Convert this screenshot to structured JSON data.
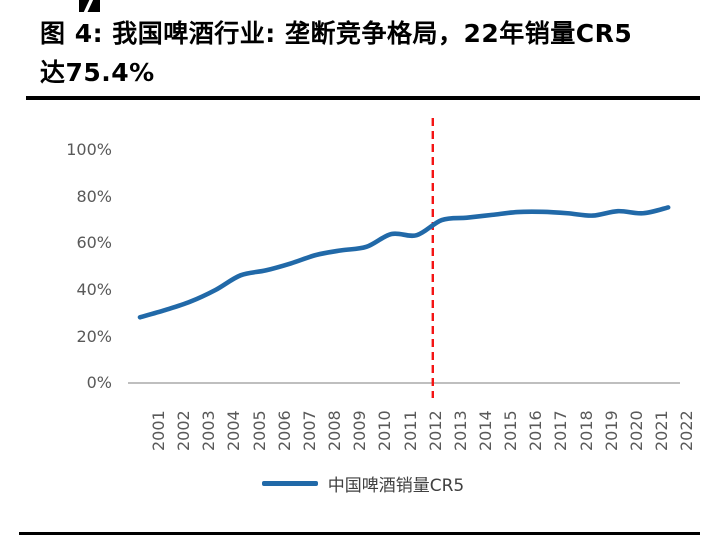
{
  "page": {
    "title_line1": "图 4: 我国啤酒行业: 垄断竞争格局，22年销量CR5",
    "title_line2": "达75.4%"
  },
  "colors": {
    "series_line": "#2169A8",
    "vline_red": "#F41414",
    "axis_gray": "#BFBFBF",
    "tick_text": "#595959",
    "title_text": "#000000"
  },
  "chart_data": {
    "type": "line",
    "title": "图 4: 我国啤酒行业: 垄断竞争格局，22年销量CR5达75.4%",
    "x": [
      "2001",
      "2002",
      "2003",
      "2004",
      "2005",
      "2006",
      "2007",
      "2008",
      "2009",
      "2010",
      "2011",
      "2012",
      "2013",
      "2014",
      "2015",
      "2016",
      "2017",
      "2018",
      "2019",
      "2020",
      "2021",
      "2022"
    ],
    "series": [
      {
        "name": "中国啤酒销量CR5",
        "values": [
          28.3,
          31.4,
          35.0,
          40.0,
          46.3,
          48.4,
          51.4,
          55.0,
          57.0,
          58.5,
          64.0,
          63.5,
          70.0,
          71.0,
          72.2,
          73.4,
          73.5,
          72.9,
          71.9,
          73.8,
          72.9,
          75.4
        ],
        "color": "#2169A8"
      }
    ],
    "xlabel": "",
    "ylabel": "",
    "ylim": [
      0,
      100
    ],
    "yticks": [
      {
        "pct": 0,
        "label": "0%"
      },
      {
        "pct": 20,
        "label": "20%"
      },
      {
        "pct": 40,
        "label": "40%"
      },
      {
        "pct": 60,
        "label": "60%"
      },
      {
        "pct": 80,
        "label": "80%"
      },
      {
        "pct": 100,
        "label": "100%"
      }
    ],
    "grid": false,
    "legend_position": "bottom",
    "annotations": [
      {
        "type": "vline",
        "at_year": "2013",
        "style": "dashed",
        "color": "#F41414"
      }
    ]
  }
}
